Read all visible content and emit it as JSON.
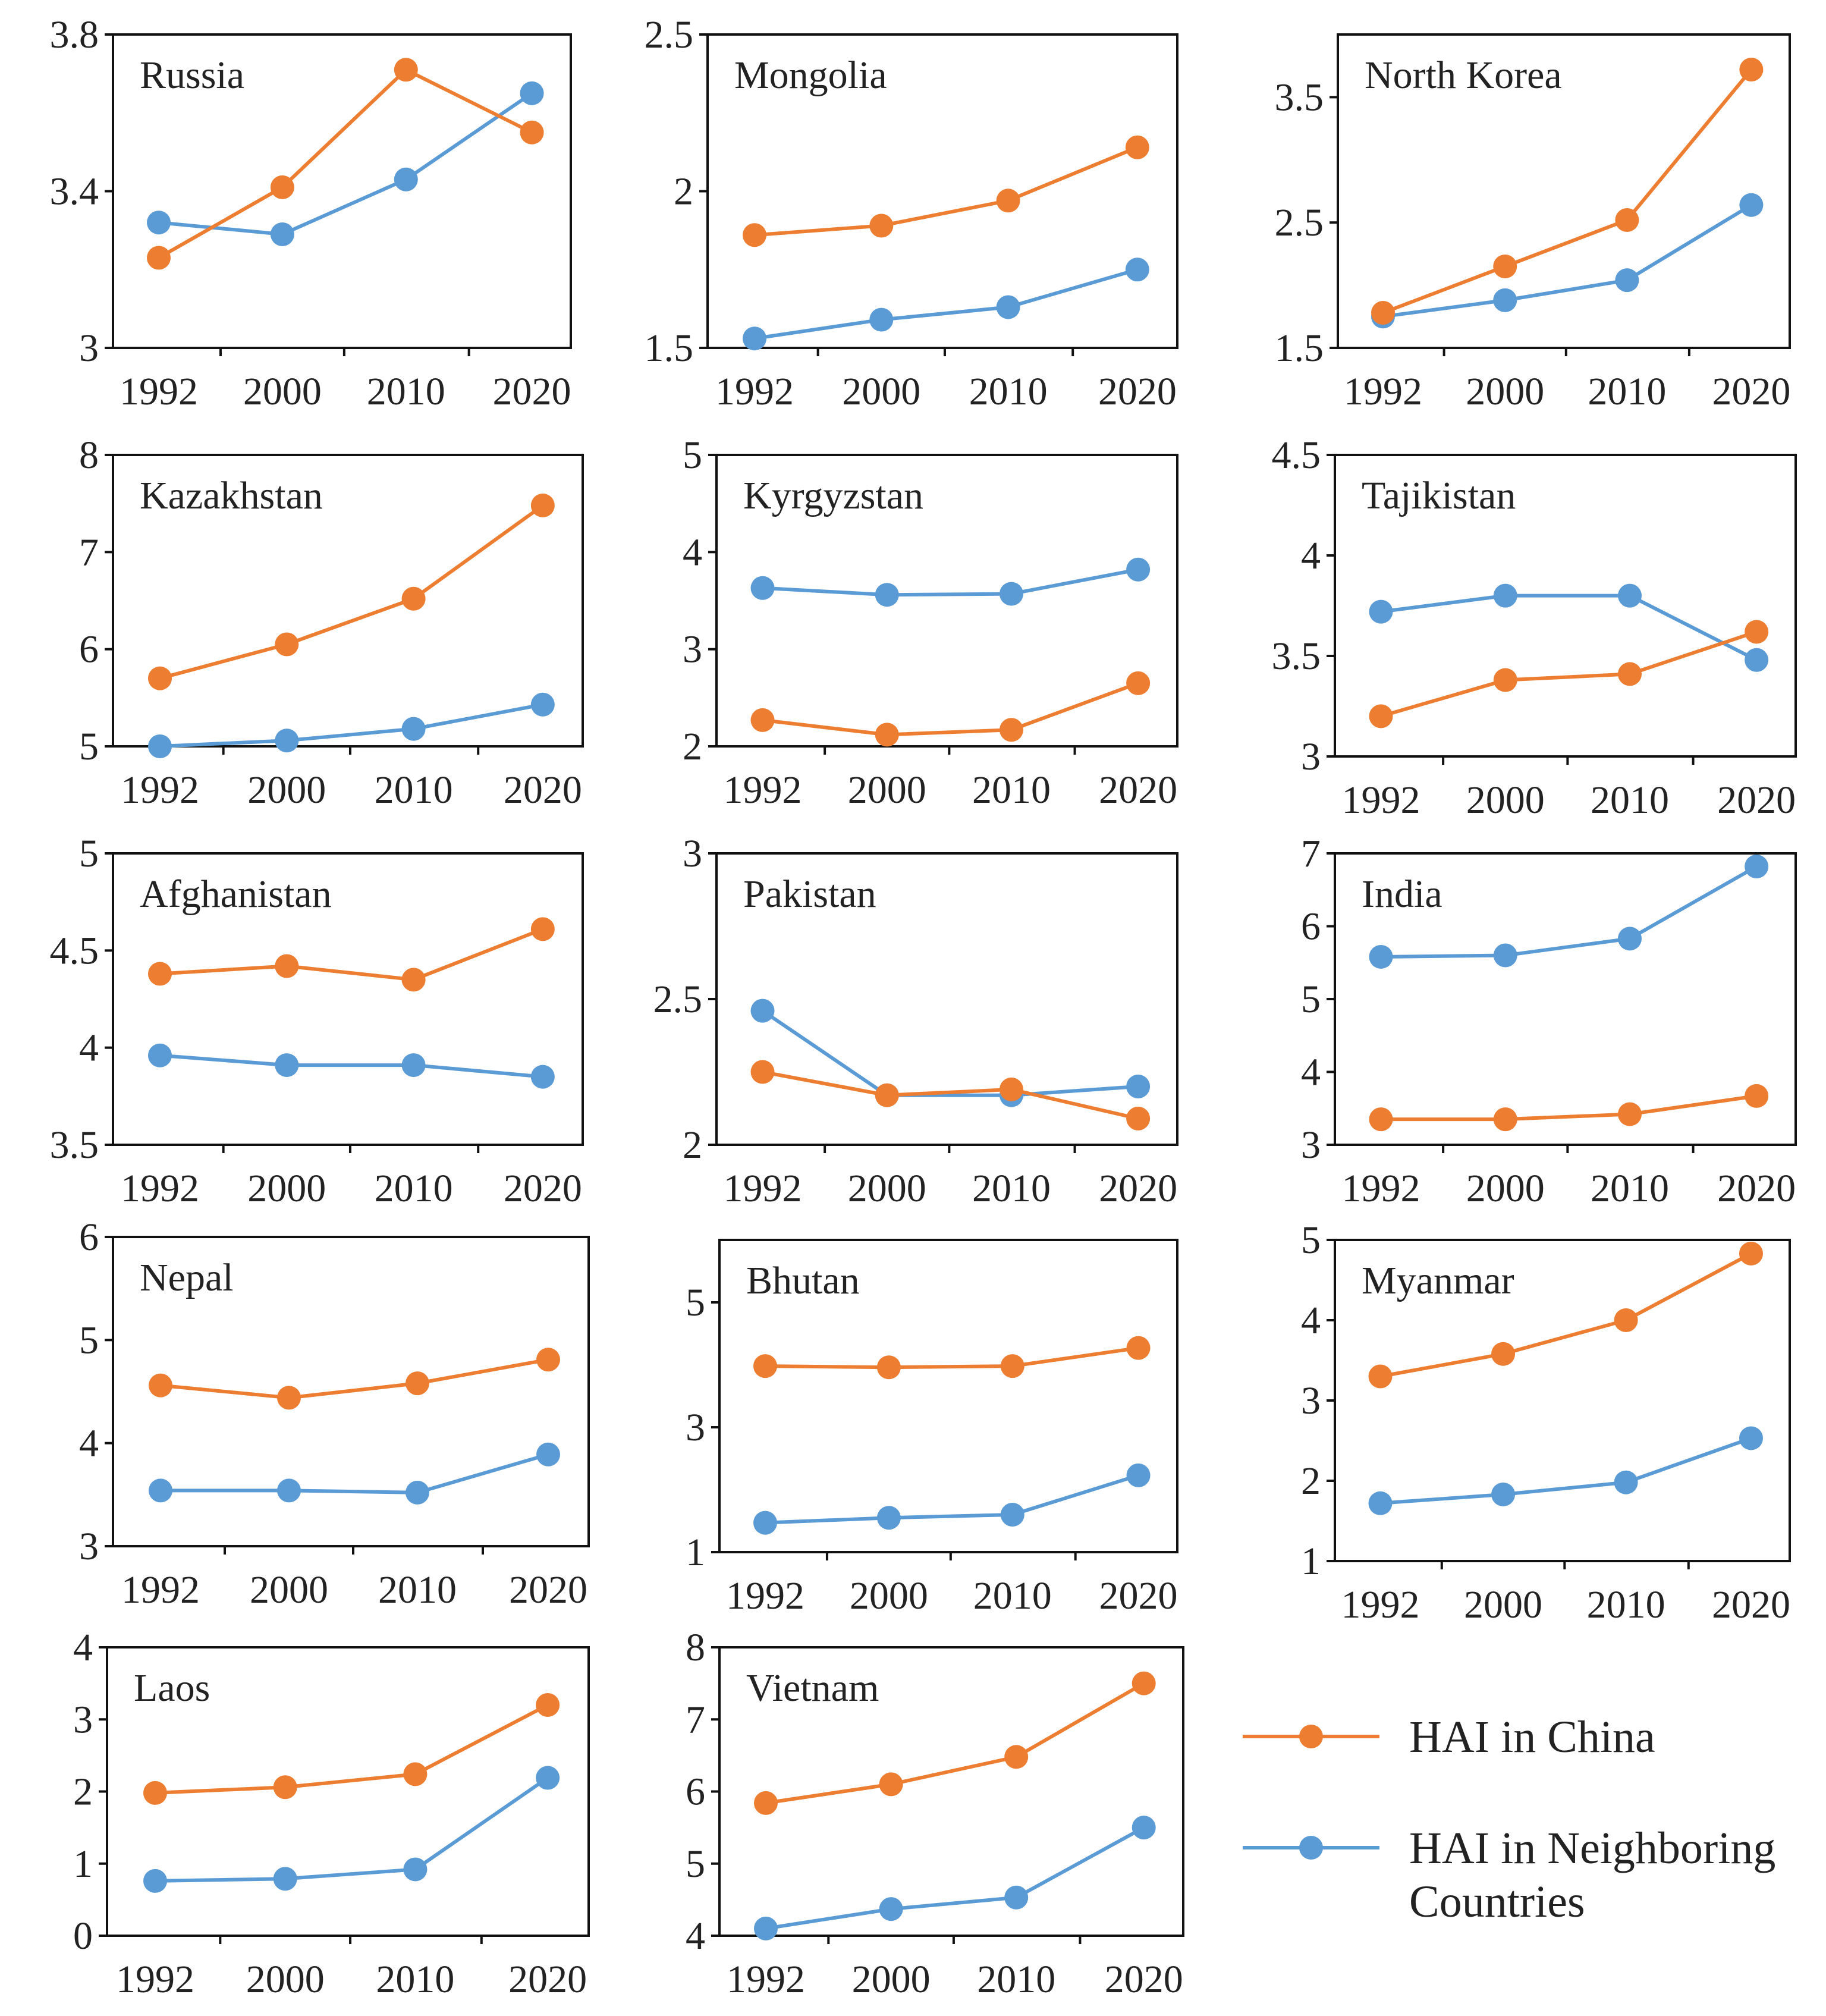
{
  "chart_data": [
    {
      "type": "line",
      "title": "Russia",
      "categories": [
        "1992",
        "2000",
        "2010",
        "2020"
      ],
      "ylim": [
        3,
        3.8
      ],
      "yticks": [
        "3",
        "3.4",
        "3.8"
      ],
      "series": [
        {
          "name": "HAI in China",
          "values": [
            3.23,
            3.41,
            3.71,
            3.55
          ]
        },
        {
          "name": "HAI in Neighboring Countries",
          "values": [
            3.32,
            3.29,
            3.43,
            3.65
          ]
        }
      ]
    },
    {
      "type": "line",
      "title": "Mongolia",
      "categories": [
        "1992",
        "2000",
        "2010",
        "2020"
      ],
      "ylim": [
        1.5,
        2.5
      ],
      "yticks": [
        "1.5",
        "2",
        "2.5"
      ],
      "series": [
        {
          "name": "HAI in China",
          "values": [
            1.86,
            1.89,
            1.97,
            2.14
          ]
        },
        {
          "name": "HAI in Neighboring Countries",
          "values": [
            1.53,
            1.59,
            1.63,
            1.75
          ]
        }
      ]
    },
    {
      "type": "line",
      "title": "North Korea",
      "categories": [
        "1992",
        "2000",
        "2010",
        "2020"
      ],
      "ylim": [
        1.5,
        4
      ],
      "yticks": [
        "1.5",
        "2.5",
        "3.5"
      ],
      "series": [
        {
          "name": "HAI in China",
          "values": [
            1.78,
            2.15,
            2.52,
            3.72
          ]
        },
        {
          "name": "HAI in Neighboring Countries",
          "values": [
            1.75,
            1.88,
            2.04,
            2.64
          ]
        }
      ]
    },
    {
      "type": "line",
      "title": "Kazakhstan",
      "categories": [
        "1992",
        "2000",
        "2010",
        "2020"
      ],
      "ylim": [
        5,
        8
      ],
      "yticks": [
        "5",
        "6",
        "7",
        "8"
      ],
      "series": [
        {
          "name": "HAI in China",
          "values": [
            5.7,
            6.05,
            6.52,
            7.48
          ]
        },
        {
          "name": "HAI in Neighboring Countries",
          "values": [
            5.0,
            5.06,
            5.18,
            5.43
          ]
        }
      ]
    },
    {
      "type": "line",
      "title": "Kyrgyzstan",
      "categories": [
        "1992",
        "2000",
        "2010",
        "2020"
      ],
      "ylim": [
        2,
        5
      ],
      "yticks": [
        "2",
        "3",
        "4",
        "5"
      ],
      "series": [
        {
          "name": "HAI in China",
          "values": [
            2.27,
            2.12,
            2.17,
            2.65
          ]
        },
        {
          "name": "HAI in Neighboring Countries",
          "values": [
            3.63,
            3.56,
            3.57,
            3.82
          ]
        }
      ]
    },
    {
      "type": "line",
      "title": "Tajikistan",
      "categories": [
        "1992",
        "2000",
        "2010",
        "2020"
      ],
      "ylim": [
        3,
        4.5
      ],
      "yticks": [
        "3",
        "3.5",
        "4",
        "4.5"
      ],
      "series": [
        {
          "name": "HAI in China",
          "values": [
            3.2,
            3.38,
            3.41,
            3.62
          ]
        },
        {
          "name": "HAI in Neighboring Countries",
          "values": [
            3.72,
            3.8,
            3.8,
            3.48
          ]
        }
      ]
    },
    {
      "type": "line",
      "title": "Afghanistan",
      "categories": [
        "1992",
        "2000",
        "2010",
        "2020"
      ],
      "ylim": [
        3.5,
        5
      ],
      "yticks": [
        "3.5",
        "4",
        "4.5",
        "5"
      ],
      "series": [
        {
          "name": "HAI in China",
          "values": [
            4.38,
            4.42,
            4.35,
            4.61
          ]
        },
        {
          "name": "HAI in Neighboring Countries",
          "values": [
            3.96,
            3.91,
            3.91,
            3.85
          ]
        }
      ]
    },
    {
      "type": "line",
      "title": "Pakistan",
      "categories": [
        "1992",
        "2000",
        "2010",
        "2020"
      ],
      "ylim": [
        2,
        3
      ],
      "yticks": [
        "2",
        "2.5",
        "3"
      ],
      "series": [
        {
          "name": "HAI in China",
          "values": [
            2.25,
            2.17,
            2.19,
            2.09
          ]
        },
        {
          "name": "HAI in Neighboring Countries",
          "values": [
            2.46,
            2.17,
            2.17,
            2.2
          ]
        }
      ]
    },
    {
      "type": "line",
      "title": "India",
      "categories": [
        "1992",
        "2000",
        "2010",
        "2020"
      ],
      "ylim": [
        3,
        7
      ],
      "yticks": [
        "3",
        "4",
        "5",
        "6",
        "7"
      ],
      "series": [
        {
          "name": "HAI in China",
          "values": [
            3.35,
            3.35,
            3.42,
            3.67
          ]
        },
        {
          "name": "HAI in Neighboring Countries",
          "values": [
            5.58,
            5.6,
            5.83,
            6.82
          ]
        }
      ]
    },
    {
      "type": "line",
      "title": "Nepal",
      "categories": [
        "1992",
        "2000",
        "2010",
        "2020"
      ],
      "ylim": [
        3,
        6
      ],
      "yticks": [
        "3",
        "4",
        "5",
        "6"
      ],
      "series": [
        {
          "name": "HAI in China",
          "values": [
            4.56,
            4.44,
            4.58,
            4.81
          ]
        },
        {
          "name": "HAI in Neighboring Countries",
          "values": [
            3.54,
            3.54,
            3.52,
            3.89
          ]
        }
      ]
    },
    {
      "type": "line",
      "title": "Bhutan",
      "categories": [
        "1992",
        "2000",
        "2010",
        "2020"
      ],
      "ylim": [
        1,
        6
      ],
      "yticks": [
        "1",
        "3",
        "5"
      ],
      "series": [
        {
          "name": "HAI in China",
          "values": [
            3.98,
            3.96,
            3.98,
            4.27
          ]
        },
        {
          "name": "HAI in Neighboring Countries",
          "values": [
            1.47,
            1.55,
            1.6,
            2.23
          ]
        }
      ]
    },
    {
      "type": "line",
      "title": "Myanmar",
      "categories": [
        "1992",
        "2000",
        "2010",
        "2020"
      ],
      "ylim": [
        1,
        5
      ],
      "yticks": [
        "1",
        "2",
        "3",
        "4",
        "5"
      ],
      "series": [
        {
          "name": "HAI in China",
          "values": [
            3.3,
            3.58,
            4.0,
            4.83
          ]
        },
        {
          "name": "HAI in Neighboring Countries",
          "values": [
            1.72,
            1.83,
            1.98,
            2.53
          ]
        }
      ]
    },
    {
      "type": "line",
      "title": "Laos",
      "categories": [
        "1992",
        "2000",
        "2010",
        "2020"
      ],
      "ylim": [
        0,
        4
      ],
      "yticks": [
        "0",
        "1",
        "2",
        "3",
        "4"
      ],
      "series": [
        {
          "name": "HAI in China",
          "values": [
            1.98,
            2.06,
            2.24,
            3.2
          ]
        },
        {
          "name": "HAI in Neighboring Countries",
          "values": [
            0.76,
            0.79,
            0.92,
            2.19
          ]
        }
      ]
    },
    {
      "type": "line",
      "title": "Vietnam",
      "categories": [
        "1992",
        "2000",
        "2010",
        "2020"
      ],
      "ylim": [
        4,
        8
      ],
      "yticks": [
        "4",
        "5",
        "6",
        "7",
        "8"
      ],
      "series": [
        {
          "name": "HAI in China",
          "values": [
            5.84,
            6.1,
            6.48,
            7.5
          ]
        },
        {
          "name": "HAI in Neighboring Countries",
          "values": [
            4.1,
            4.37,
            4.53,
            5.5
          ]
        }
      ]
    }
  ],
  "legend": [
    {
      "label": "HAI in China",
      "color": "#ED7D31"
    },
    {
      "label": "HAI in Neighboring",
      "label2": "Countries",
      "color": "#5B9BD5"
    }
  ]
}
